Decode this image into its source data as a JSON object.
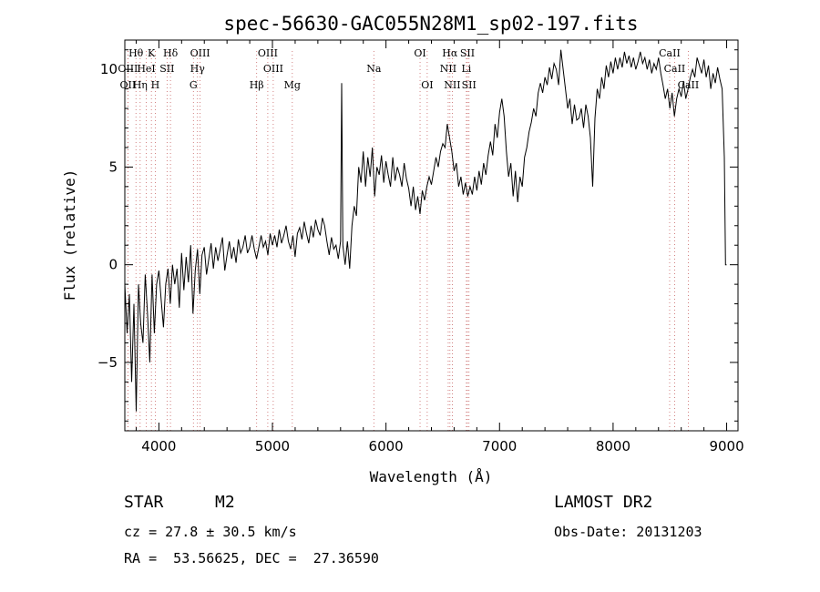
{
  "chart_data": {
    "type": "line",
    "title": "spec-56630-GAC055N28M1_sp02-197.fits",
    "xlabel": "Wavelength (Å)",
    "ylabel": "Flux (relative)",
    "xlim": [
      3700,
      9100
    ],
    "ylim": [
      -8.5,
      11.5
    ],
    "xticks": [
      4000,
      5000,
      6000,
      7000,
      8000,
      9000
    ],
    "yticks": [
      -5,
      0,
      5,
      10
    ],
    "x_minor_step": 200,
    "y_minor_step": 1,
    "series": [
      {
        "points": [
          [
            3700,
            -1.0
          ],
          [
            3720,
            -3.5
          ],
          [
            3740,
            -1.5
          ],
          [
            3760,
            -6.0
          ],
          [
            3780,
            -2.0
          ],
          [
            3800,
            -7.5
          ],
          [
            3820,
            -1.0
          ],
          [
            3840,
            -3.0
          ],
          [
            3860,
            -4.0
          ],
          [
            3880,
            -0.5
          ],
          [
            3900,
            -2.5
          ],
          [
            3920,
            -5.0
          ],
          [
            3940,
            -0.5
          ],
          [
            3960,
            -3.5
          ],
          [
            3980,
            -1.0
          ],
          [
            4000,
            -0.3
          ],
          [
            4020,
            -1.8
          ],
          [
            4040,
            -3.2
          ],
          [
            4060,
            -1.0
          ],
          [
            4080,
            -0.2
          ],
          [
            4100,
            -2.0
          ],
          [
            4120,
            0.0
          ],
          [
            4140,
            -1.0
          ],
          [
            4160,
            -0.2
          ],
          [
            4180,
            -2.2
          ],
          [
            4200,
            0.6
          ],
          [
            4220,
            -1.3
          ],
          [
            4240,
            0.4
          ],
          [
            4260,
            -0.9
          ],
          [
            4280,
            1.0
          ],
          [
            4300,
            -2.5
          ],
          [
            4320,
            -0.3
          ],
          [
            4340,
            0.8
          ],
          [
            4360,
            -1.5
          ],
          [
            4380,
            0.5
          ],
          [
            4400,
            0.9
          ],
          [
            4420,
            -0.5
          ],
          [
            4440,
            0.3
          ],
          [
            4460,
            1.1
          ],
          [
            4480,
            -0.2
          ],
          [
            4500,
            0.9
          ],
          [
            4520,
            0.2
          ],
          [
            4540,
            0.8
          ],
          [
            4560,
            1.4
          ],
          [
            4580,
            -0.3
          ],
          [
            4600,
            0.5
          ],
          [
            4620,
            1.2
          ],
          [
            4640,
            0.3
          ],
          [
            4660,
            0.9
          ],
          [
            4680,
            0.1
          ],
          [
            4700,
            1.3
          ],
          [
            4720,
            0.6
          ],
          [
            4740,
            0.9
          ],
          [
            4760,
            1.5
          ],
          [
            4780,
            0.6
          ],
          [
            4800,
            0.9
          ],
          [
            4820,
            1.5
          ],
          [
            4840,
            0.8
          ],
          [
            4860,
            0.3
          ],
          [
            4880,
            0.9
          ],
          [
            4900,
            1.5
          ],
          [
            4920,
            0.9
          ],
          [
            4940,
            1.2
          ],
          [
            4960,
            0.5
          ],
          [
            4980,
            1.6
          ],
          [
            5000,
            1.0
          ],
          [
            5020,
            1.5
          ],
          [
            5040,
            0.9
          ],
          [
            5060,
            1.8
          ],
          [
            5080,
            1.1
          ],
          [
            5100,
            1.5
          ],
          [
            5120,
            2.0
          ],
          [
            5140,
            1.2
          ],
          [
            5160,
            0.8
          ],
          [
            5180,
            1.5
          ],
          [
            5200,
            0.4
          ],
          [
            5220,
            1.6
          ],
          [
            5240,
            1.9
          ],
          [
            5260,
            1.3
          ],
          [
            5280,
            2.2
          ],
          [
            5300,
            1.6
          ],
          [
            5320,
            1.1
          ],
          [
            5340,
            2.0
          ],
          [
            5360,
            1.4
          ],
          [
            5380,
            2.3
          ],
          [
            5400,
            1.8
          ],
          [
            5420,
            1.5
          ],
          [
            5440,
            2.4
          ],
          [
            5460,
            2.0
          ],
          [
            5480,
            1.2
          ],
          [
            5500,
            0.5
          ],
          [
            5520,
            1.4
          ],
          [
            5540,
            0.8
          ],
          [
            5560,
            1.0
          ],
          [
            5580,
            0.3
          ],
          [
            5600,
            1.2
          ],
          [
            5610,
            9.3
          ],
          [
            5620,
            1.0
          ],
          [
            5640,
            0.0
          ],
          [
            5660,
            1.2
          ],
          [
            5680,
            -0.2
          ],
          [
            5700,
            2.0
          ],
          [
            5720,
            3.0
          ],
          [
            5740,
            2.5
          ],
          [
            5760,
            5.0
          ],
          [
            5780,
            4.2
          ],
          [
            5800,
            5.8
          ],
          [
            5820,
            4.0
          ],
          [
            5840,
            5.5
          ],
          [
            5860,
            4.5
          ],
          [
            5880,
            6.0
          ],
          [
            5900,
            3.5
          ],
          [
            5920,
            5.0
          ],
          [
            5940,
            4.6
          ],
          [
            5960,
            5.6
          ],
          [
            5980,
            4.2
          ],
          [
            6000,
            5.3
          ],
          [
            6020,
            4.6
          ],
          [
            6040,
            4.0
          ],
          [
            6060,
            5.5
          ],
          [
            6080,
            4.3
          ],
          [
            6100,
            5.0
          ],
          [
            6120,
            4.6
          ],
          [
            6140,
            4.0
          ],
          [
            6160,
            5.2
          ],
          [
            6180,
            4.4
          ],
          [
            6200,
            3.9
          ],
          [
            6220,
            3.0
          ],
          [
            6240,
            4.0
          ],
          [
            6260,
            2.8
          ],
          [
            6280,
            3.5
          ],
          [
            6300,
            2.6
          ],
          [
            6320,
            3.8
          ],
          [
            6340,
            3.3
          ],
          [
            6360,
            4.0
          ],
          [
            6380,
            4.5
          ],
          [
            6400,
            4.1
          ],
          [
            6420,
            4.8
          ],
          [
            6440,
            5.5
          ],
          [
            6460,
            5.0
          ],
          [
            6480,
            5.8
          ],
          [
            6500,
            6.2
          ],
          [
            6520,
            6.0
          ],
          [
            6540,
            7.2
          ],
          [
            6560,
            6.5
          ],
          [
            6580,
            5.8
          ],
          [
            6600,
            4.8
          ],
          [
            6620,
            5.2
          ],
          [
            6640,
            4.0
          ],
          [
            6660,
            4.5
          ],
          [
            6680,
            3.6
          ],
          [
            6700,
            4.2
          ],
          [
            6720,
            3.5
          ],
          [
            6740,
            4.0
          ],
          [
            6760,
            3.6
          ],
          [
            6780,
            4.5
          ],
          [
            6800,
            3.8
          ],
          [
            6820,
            4.8
          ],
          [
            6840,
            4.1
          ],
          [
            6860,
            5.2
          ],
          [
            6880,
            4.6
          ],
          [
            6900,
            5.6
          ],
          [
            6920,
            6.3
          ],
          [
            6940,
            5.6
          ],
          [
            6960,
            7.2
          ],
          [
            6980,
            6.5
          ],
          [
            7000,
            7.8
          ],
          [
            7020,
            8.5
          ],
          [
            7040,
            7.6
          ],
          [
            7060,
            5.8
          ],
          [
            7080,
            4.5
          ],
          [
            7100,
            5.2
          ],
          [
            7120,
            3.5
          ],
          [
            7140,
            4.8
          ],
          [
            7160,
            3.2
          ],
          [
            7180,
            4.5
          ],
          [
            7200,
            4.0
          ],
          [
            7220,
            5.5
          ],
          [
            7240,
            6.0
          ],
          [
            7260,
            6.8
          ],
          [
            7280,
            7.3
          ],
          [
            7300,
            8.0
          ],
          [
            7320,
            7.6
          ],
          [
            7340,
            8.8
          ],
          [
            7360,
            9.3
          ],
          [
            7380,
            8.8
          ],
          [
            7400,
            9.6
          ],
          [
            7420,
            9.2
          ],
          [
            7440,
            10.1
          ],
          [
            7460,
            9.5
          ],
          [
            7480,
            10.3
          ],
          [
            7500,
            10.0
          ],
          [
            7520,
            9.2
          ],
          [
            7540,
            11.0
          ],
          [
            7560,
            10.0
          ],
          [
            7580,
            9.0
          ],
          [
            7600,
            8.0
          ],
          [
            7620,
            8.5
          ],
          [
            7640,
            7.2
          ],
          [
            7660,
            8.2
          ],
          [
            7680,
            7.4
          ],
          [
            7700,
            7.5
          ],
          [
            7720,
            8.0
          ],
          [
            7740,
            7.0
          ],
          [
            7760,
            8.2
          ],
          [
            7780,
            7.6
          ],
          [
            7800,
            6.5
          ],
          [
            7820,
            4.0
          ],
          [
            7840,
            7.5
          ],
          [
            7860,
            9.0
          ],
          [
            7880,
            8.5
          ],
          [
            7900,
            9.6
          ],
          [
            7920,
            9.0
          ],
          [
            7940,
            10.2
          ],
          [
            7960,
            9.6
          ],
          [
            7980,
            10.4
          ],
          [
            8000,
            9.8
          ],
          [
            8020,
            10.6
          ],
          [
            8040,
            10.0
          ],
          [
            8060,
            10.6
          ],
          [
            8080,
            10.1
          ],
          [
            8100,
            10.9
          ],
          [
            8120,
            10.3
          ],
          [
            8140,
            10.7
          ],
          [
            8160,
            10.1
          ],
          [
            8180,
            10.6
          ],
          [
            8200,
            10.0
          ],
          [
            8220,
            10.4
          ],
          [
            8240,
            10.9
          ],
          [
            8260,
            10.3
          ],
          [
            8280,
            10.6
          ],
          [
            8300,
            10.0
          ],
          [
            8320,
            10.5
          ],
          [
            8340,
            9.8
          ],
          [
            8360,
            10.3
          ],
          [
            8380,
            10.0
          ],
          [
            8400,
            10.6
          ],
          [
            8420,
            9.8
          ],
          [
            8440,
            9.2
          ],
          [
            8460,
            8.5
          ],
          [
            8480,
            9.0
          ],
          [
            8500,
            8.0
          ],
          [
            8520,
            8.8
          ],
          [
            8540,
            7.6
          ],
          [
            8560,
            8.5
          ],
          [
            8580,
            9.0
          ],
          [
            8600,
            8.6
          ],
          [
            8620,
            9.4
          ],
          [
            8640,
            8.5
          ],
          [
            8660,
            9.0
          ],
          [
            8680,
            9.6
          ],
          [
            8700,
            10.0
          ],
          [
            8720,
            9.6
          ],
          [
            8740,
            10.6
          ],
          [
            8760,
            10.2
          ],
          [
            8780,
            9.8
          ],
          [
            8800,
            10.5
          ],
          [
            8820,
            9.6
          ],
          [
            8840,
            10.2
          ],
          [
            8860,
            9.0
          ],
          [
            8880,
            9.8
          ],
          [
            8900,
            9.3
          ],
          [
            8920,
            10.1
          ],
          [
            8940,
            9.5
          ],
          [
            8960,
            9.0
          ],
          [
            8980,
            5.5
          ],
          [
            8990,
            0.0
          ],
          [
            9000,
            0.0
          ]
        ]
      }
    ],
    "spectral_lines": [
      {
        "label": "Hθ",
        "x": 3798,
        "row": 0
      },
      {
        "label": "K",
        "x": 3934,
        "row": 0
      },
      {
        "label": "Hδ",
        "x": 4102,
        "row": 0
      },
      {
        "label": "OIII",
        "x": 4363,
        "row": 0
      },
      {
        "label": "OIII",
        "x": 4959,
        "row": 0
      },
      {
        "label": "OI",
        "x": 6300,
        "row": 0
      },
      {
        "label": "Hα",
        "x": 6563,
        "row": 0
      },
      {
        "label": "SII",
        "x": 6717,
        "row": 0
      },
      {
        "label": "CaII",
        "x": 8498,
        "row": 0
      },
      {
        "label": "OIII",
        "x": 3727,
        "row": 1
      },
      {
        "label": "HeI",
        "x": 3889,
        "row": 1
      },
      {
        "label": "SII",
        "x": 4072,
        "row": 1
      },
      {
        "label": "Hγ",
        "x": 4340,
        "row": 1
      },
      {
        "label": "OIII",
        "x": 5007,
        "row": 1
      },
      {
        "label": "Na",
        "x": 5893,
        "row": 1
      },
      {
        "label": "NII",
        "x": 6548,
        "row": 1
      },
      {
        "label": "Li",
        "x": 6708,
        "row": 1
      },
      {
        "label": "CaII",
        "x": 8542,
        "row": 1
      },
      {
        "label": "OII",
        "x": 3727,
        "row": 2
      },
      {
        "label": "Hη",
        "x": 3835,
        "row": 2
      },
      {
        "label": "H",
        "x": 3968,
        "row": 2
      },
      {
        "label": "G",
        "x": 4304,
        "row": 2
      },
      {
        "label": "Hβ",
        "x": 4861,
        "row": 2
      },
      {
        "label": "Mg",
        "x": 5175,
        "row": 2
      },
      {
        "label": "OI",
        "x": 6363,
        "row": 2
      },
      {
        "label": "NII",
        "x": 6584,
        "row": 2
      },
      {
        "label": "SII",
        "x": 6731,
        "row": 2
      },
      {
        "label": "CaII",
        "x": 8662,
        "row": 2
      }
    ]
  },
  "info": {
    "class": "STAR",
    "subclass": "M2",
    "survey": "LAMOST DR2",
    "redshift": "cz = 27.8 ± 30.5 km/s",
    "obs_date": "Obs-Date: 20131203",
    "coords": "RA =  53.56625, DEC =  27.36590"
  }
}
